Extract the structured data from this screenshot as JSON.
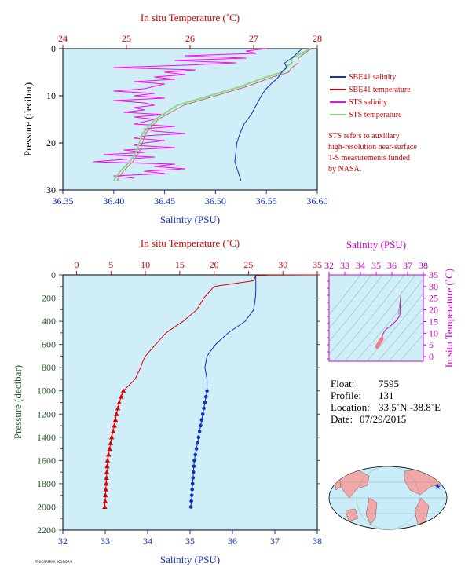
{
  "chart_data": [
    {
      "type": "line",
      "xlabel_top": "In situ Temperature (˚C)",
      "xlabel_bottom": "Salinity (PSU)",
      "ylabel": "Pressure (decibar)",
      "temp_range": [
        24,
        28
      ],
      "temp_ticks": [
        "24",
        "25",
        "26",
        "27",
        "28"
      ],
      "sal_range": [
        36.35,
        36.6
      ],
      "sal_ticks": [
        "36.35",
        "36.40",
        "36.45",
        "36.50",
        "36.55",
        "36.60"
      ],
      "p_range": [
        0,
        30
      ],
      "p_ticks": [
        "0",
        "10",
        "20",
        "30"
      ],
      "legend": [
        {
          "label": "SBE41 salinity",
          "color": "#1030c0"
        },
        {
          "label": "SBE41 temperature",
          "color": "#cc0000"
        },
        {
          "label": "STS salinity",
          "color": "#ff00ff"
        },
        {
          "label": "STS temperature",
          "color": "#88d888"
        }
      ],
      "note": [
        "STS refers to auxiliary",
        "high-resolution near-surface",
        "T-S measurements funded",
        "by NASA."
      ],
      "sbe41_salinity": {
        "p": [
          0,
          2,
          3,
          4,
          5,
          6,
          7,
          8,
          9,
          10,
          12,
          14,
          16,
          18,
          20,
          22,
          24,
          26,
          28
        ],
        "s": [
          36.585,
          36.575,
          36.568,
          36.57,
          36.565,
          36.562,
          36.557,
          36.552,
          36.548,
          36.545,
          36.54,
          36.535,
          36.528,
          36.524,
          36.521,
          36.52,
          36.519,
          36.522,
          36.525
        ]
      },
      "sbe41_temperature": {
        "p": [
          0,
          2,
          3,
          4,
          5,
          6,
          8,
          10,
          12,
          15,
          18,
          20,
          22,
          24,
          26,
          28
        ],
        "t": [
          27.9,
          27.7,
          27.7,
          27.6,
          27.55,
          27.3,
          26.9,
          26.4,
          25.9,
          25.5,
          25.3,
          25.25,
          25.2,
          25.1,
          24.95,
          24.85
        ]
      },
      "sts_temperature": {
        "p": [
          0,
          2,
          3,
          4,
          5,
          6,
          8,
          10,
          12,
          15,
          18,
          20,
          22,
          24,
          26,
          28
        ],
        "t": [
          27.9,
          27.6,
          27.6,
          27.5,
          27.45,
          27.2,
          26.8,
          26.3,
          25.8,
          25.45,
          25.25,
          25.2,
          25.15,
          25.05,
          24.9,
          24.8
        ]
      },
      "sts_salinity": {
        "p": [
          0,
          0.5,
          1,
          1.5,
          2,
          2.5,
          3,
          3.5,
          4,
          4.5,
          5,
          5.5,
          6,
          6.5,
          7,
          7.5,
          8,
          8.5,
          9,
          9.5,
          10,
          10.5,
          11,
          11.5,
          12,
          12.5,
          13,
          13.5,
          14,
          14.5,
          15,
          15.5,
          16,
          16.5,
          17,
          17.5,
          18,
          18.5,
          19,
          19.5,
          20,
          20.5,
          21,
          21.5,
          22,
          22.5,
          23,
          23.5,
          24,
          24.5,
          25,
          25.5,
          26,
          26.5,
          27,
          27.5
        ],
        "s": [
          36.55,
          36.53,
          36.54,
          36.47,
          36.53,
          36.46,
          36.52,
          36.47,
          36.4,
          36.48,
          36.45,
          36.47,
          36.44,
          36.46,
          36.42,
          36.45,
          36.44,
          36.43,
          36.4,
          36.44,
          36.42,
          36.45,
          36.4,
          36.43,
          36.44,
          36.42,
          36.43,
          36.41,
          36.45,
          36.42,
          36.44,
          36.43,
          36.42,
          36.46,
          36.43,
          36.44,
          36.47,
          36.43,
          36.42,
          36.45,
          36.43,
          36.42,
          36.46,
          36.41,
          36.43,
          36.39,
          36.44,
          36.41,
          36.38,
          36.46,
          36.44,
          36.47,
          36.43,
          36.45,
          36.4,
          36.42
        ]
      }
    },
    {
      "type": "line",
      "xlabel_top": "In situ Temperature (˚C)",
      "xlabel_bottom": "Salinity (PSU)",
      "ylabel": "Pressure (decibar)",
      "temp_range": [
        -2,
        35
      ],
      "temp_ticks": [
        "0",
        "5",
        "10",
        "15",
        "20",
        "25",
        "30",
        "35"
      ],
      "sal_range": [
        32,
        38
      ],
      "sal_ticks": [
        "32",
        "33",
        "34",
        "35",
        "36",
        "37",
        "38"
      ],
      "p_range": [
        0,
        2200
      ],
      "p_ticks": [
        "0",
        "200",
        "400",
        "600",
        "800",
        "1000",
        "1200",
        "1400",
        "1600",
        "1800",
        "2000",
        "2200"
      ],
      "salinity": {
        "p": [
          0,
          50,
          100,
          150,
          200,
          300,
          400,
          500,
          600,
          700,
          800,
          900,
          1000,
          1100,
          1200,
          1300,
          1400,
          1500,
          1600,
          1700,
          1800,
          1900,
          2000
        ],
        "s": [
          36.55,
          36.55,
          36.55,
          36.55,
          36.54,
          36.5,
          36.3,
          35.9,
          35.6,
          35.4,
          35.35,
          35.4,
          35.4,
          35.35,
          35.3,
          35.25,
          35.2,
          35.15,
          35.1,
          35.08,
          35.06,
          35.04,
          35.02
        ]
      },
      "temperature": {
        "p": [
          0,
          2,
          5,
          10,
          50,
          100,
          200,
          300,
          400,
          500,
          600,
          700,
          750,
          800,
          900,
          1000,
          1100,
          1200,
          1300,
          1400,
          1500,
          1600,
          1700,
          1800,
          1900,
          2000
        ],
        "t": [
          35,
          28,
          26.5,
          26,
          25.8,
          20,
          18.5,
          17.5,
          15.5,
          13,
          11.5,
          10,
          9.6,
          9.3,
          8.5,
          6.8,
          6.2,
          5.8,
          5.5,
          5.1,
          4.8,
          4.5,
          4.4,
          4.3,
          4.2,
          4.1
        ]
      },
      "salinity_markers_p": [
        1000,
        1050,
        1100,
        1150,
        1200,
        1250,
        1300,
        1350,
        1400,
        1450,
        1500,
        1550,
        1600,
        1650,
        1700,
        1750,
        1800,
        1850,
        1900,
        1950,
        2000
      ],
      "temperature_markers_p": [
        1000,
        1050,
        1100,
        1150,
        1200,
        1250,
        1300,
        1350,
        1400,
        1450,
        1500,
        1550,
        1600,
        1650,
        1700,
        1750,
        1800,
        1850,
        1900,
        1950,
        2000
      ]
    },
    {
      "type": "scatter",
      "title": "Salinity (PSU)",
      "ylabel": "In situ Temperature (˚C)",
      "sal_range": [
        32,
        38
      ],
      "sal_ticks": [
        "32",
        "33",
        "34",
        "35",
        "36",
        "37",
        "38"
      ],
      "temp_range": [
        -2,
        35
      ],
      "temp_ticks": [
        "0",
        "5",
        "10",
        "15",
        "20",
        "25",
        "30",
        "35"
      ],
      "ts_curve": {
        "s": [
          35.02,
          35.1,
          35.2,
          35.3,
          35.4,
          35.4,
          35.6,
          35.9,
          36.3,
          36.5,
          36.55
        ],
        "t": [
          4.1,
          4.5,
          5.1,
          5.8,
          6.8,
          9.3,
          11.5,
          13,
          15.5,
          17.5,
          26
        ]
      }
    }
  ],
  "info": {
    "float_label": "Float:",
    "float_value": "7595",
    "profile_label": "Profile:",
    "profile_value": "131",
    "location_label": "Location:",
    "location_value": "33.5˚N  -38.8˚E",
    "date_label": "Date:",
    "date_value": "07/29/2015"
  },
  "footer_tiny": "PROGRAMMA 2015/07/9",
  "colors": {
    "panel_bg": "#cfeef8",
    "temperature": "#dd0000",
    "salinity": "#1030c0",
    "sts_salinity": "#ff00ff",
    "sts_temperature": "#90d890",
    "ts_frame": "#cc00cc",
    "axis_left": "#2a5a2a"
  }
}
